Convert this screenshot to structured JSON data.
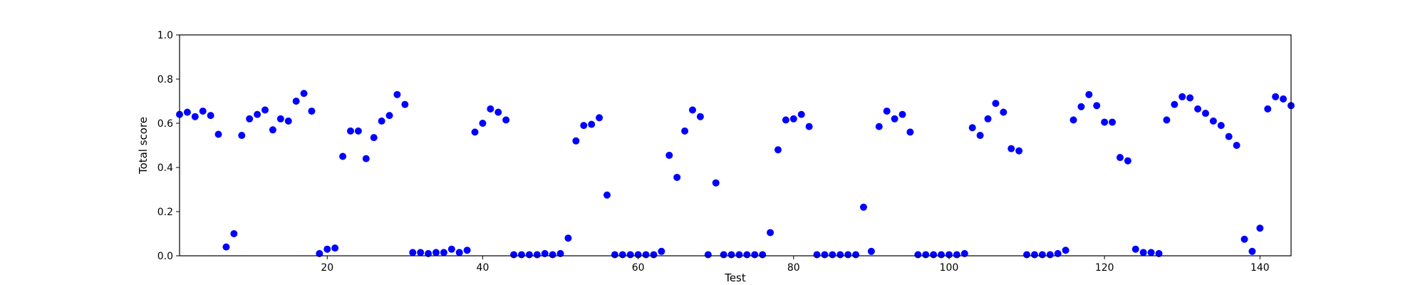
{
  "chart_data": {
    "type": "scatter",
    "title": "",
    "xlabel": "Test",
    "ylabel": "Total score",
    "xlim": [
      1,
      144
    ],
    "ylim": [
      0.0,
      1.0
    ],
    "xticks": [
      20,
      40,
      60,
      80,
      100,
      120,
      140
    ],
    "yticks": [
      0.0,
      0.2,
      0.4,
      0.6,
      0.8,
      1.0
    ],
    "ytick_labels": [
      "0.0",
      "0.2",
      "0.4",
      "0.6",
      "0.8",
      "1.0"
    ],
    "xtick_labels": [
      "20",
      "40",
      "60",
      "80",
      "100",
      "120",
      "140"
    ],
    "grid": false,
    "marker_color": "#0000ff",
    "points": [
      [
        1,
        0.64
      ],
      [
        2,
        0.65
      ],
      [
        3,
        0.63
      ],
      [
        4,
        0.655
      ],
      [
        5,
        0.635
      ],
      [
        6,
        0.55
      ],
      [
        7,
        0.04
      ],
      [
        8,
        0.1
      ],
      [
        9,
        0.545
      ],
      [
        10,
        0.62
      ],
      [
        11,
        0.64
      ],
      [
        12,
        0.66
      ],
      [
        13,
        0.57
      ],
      [
        14,
        0.62
      ],
      [
        15,
        0.61
      ],
      [
        16,
        0.7
      ],
      [
        17,
        0.735
      ],
      [
        18,
        0.655
      ],
      [
        19,
        0.01
      ],
      [
        20,
        0.03
      ],
      [
        21,
        0.035
      ],
      [
        22,
        0.45
      ],
      [
        23,
        0.565
      ],
      [
        24,
        0.565
      ],
      [
        25,
        0.44
      ],
      [
        26,
        0.535
      ],
      [
        27,
        0.61
      ],
      [
        28,
        0.635
      ],
      [
        29,
        0.73
      ],
      [
        30,
        0.685
      ],
      [
        31,
        0.015
      ],
      [
        32,
        0.015
      ],
      [
        33,
        0.01
      ],
      [
        34,
        0.015
      ],
      [
        35,
        0.015
      ],
      [
        36,
        0.03
      ],
      [
        37,
        0.015
      ],
      [
        38,
        0.025
      ],
      [
        39,
        0.56
      ],
      [
        40,
        0.6
      ],
      [
        41,
        0.665
      ],
      [
        42,
        0.65
      ],
      [
        43,
        0.615
      ],
      [
        44,
        0.005
      ],
      [
        45,
        0.005
      ],
      [
        46,
        0.005
      ],
      [
        47,
        0.005
      ],
      [
        48,
        0.01
      ],
      [
        49,
        0.005
      ],
      [
        50,
        0.01
      ],
      [
        51,
        0.08
      ],
      [
        52,
        0.52
      ],
      [
        53,
        0.59
      ],
      [
        54,
        0.595
      ],
      [
        55,
        0.625
      ],
      [
        56,
        0.275
      ],
      [
        57,
        0.005
      ],
      [
        58,
        0.005
      ],
      [
        59,
        0.005
      ],
      [
        60,
        0.005
      ],
      [
        61,
        0.005
      ],
      [
        62,
        0.005
      ],
      [
        63,
        0.02
      ],
      [
        64,
        0.455
      ],
      [
        65,
        0.355
      ],
      [
        66,
        0.565
      ],
      [
        67,
        0.66
      ],
      [
        68,
        0.63
      ],
      [
        69,
        0.005
      ],
      [
        70,
        0.33
      ],
      [
        71,
        0.005
      ],
      [
        72,
        0.005
      ],
      [
        73,
        0.005
      ],
      [
        74,
        0.005
      ],
      [
        75,
        0.005
      ],
      [
        76,
        0.005
      ],
      [
        77,
        0.105
      ],
      [
        78,
        0.48
      ],
      [
        79,
        0.615
      ],
      [
        80,
        0.62
      ],
      [
        81,
        0.64
      ],
      [
        82,
        0.585
      ],
      [
        83,
        0.005
      ],
      [
        84,
        0.005
      ],
      [
        85,
        0.005
      ],
      [
        86,
        0.005
      ],
      [
        87,
        0.005
      ],
      [
        88,
        0.005
      ],
      [
        89,
        0.22
      ],
      [
        90,
        0.02
      ],
      [
        91,
        0.585
      ],
      [
        92,
        0.655
      ],
      [
        93,
        0.62
      ],
      [
        94,
        0.64
      ],
      [
        95,
        0.56
      ],
      [
        96,
        0.005
      ],
      [
        97,
        0.005
      ],
      [
        98,
        0.005
      ],
      [
        99,
        0.005
      ],
      [
        100,
        0.005
      ],
      [
        101,
        0.005
      ],
      [
        102,
        0.01
      ],
      [
        103,
        0.58
      ],
      [
        104,
        0.545
      ],
      [
        105,
        0.62
      ],
      [
        106,
        0.69
      ],
      [
        107,
        0.65
      ],
      [
        108,
        0.485
      ],
      [
        109,
        0.475
      ],
      [
        110,
        0.005
      ],
      [
        111,
        0.005
      ],
      [
        112,
        0.005
      ],
      [
        113,
        0.005
      ],
      [
        114,
        0.01
      ],
      [
        115,
        0.025
      ],
      [
        116,
        0.615
      ],
      [
        117,
        0.675
      ],
      [
        118,
        0.73
      ],
      [
        119,
        0.68
      ],
      [
        120,
        0.605
      ],
      [
        121,
        0.605
      ],
      [
        122,
        0.445
      ],
      [
        123,
        0.43
      ],
      [
        124,
        0.03
      ],
      [
        125,
        0.015
      ],
      [
        126,
        0.015
      ],
      [
        127,
        0.01
      ],
      [
        128,
        0.615
      ],
      [
        129,
        0.685
      ],
      [
        130,
        0.72
      ],
      [
        131,
        0.715
      ],
      [
        132,
        0.665
      ],
      [
        133,
        0.645
      ],
      [
        134,
        0.61
      ],
      [
        135,
        0.59
      ],
      [
        136,
        0.54
      ],
      [
        137,
        0.5
      ],
      [
        138,
        0.075
      ],
      [
        139,
        0.02
      ],
      [
        140,
        0.125
      ],
      [
        141,
        0.665
      ],
      [
        142,
        0.72
      ],
      [
        143,
        0.71
      ],
      [
        144,
        0.68
      ]
    ]
  }
}
